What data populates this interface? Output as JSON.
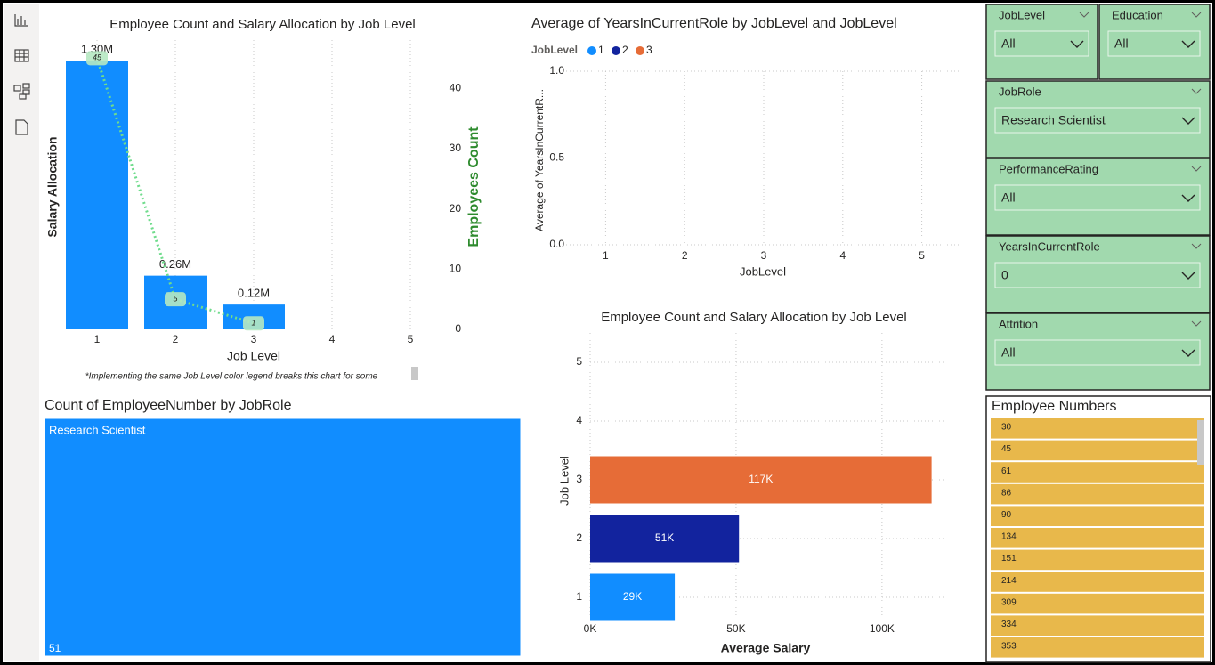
{
  "chart_data": [
    {
      "type": "bar-line",
      "title": "Employee Count and Salary Allocation by Job Level",
      "x": [
        1,
        2,
        3
      ],
      "xlim": [
        0.5,
        5.5
      ],
      "xticks": [
        1,
        2,
        3,
        4,
        5
      ],
      "xlabel": "Job Level",
      "ylabel": "Salary Allocation",
      "ylim": [
        0,
        1400000
      ],
      "y2label": "Employees Count",
      "y2lim": [
        0,
        48
      ],
      "y2ticks": [
        0,
        10,
        20,
        30,
        40
      ],
      "series": [
        {
          "type": "bar",
          "color": "#118dff",
          "values": [
            1300000,
            260000,
            120000
          ],
          "value_labels": [
            "1.30M",
            "0.26M",
            "0.12M"
          ]
        },
        {
          "type": "line",
          "color": "#6fdc8c",
          "axis": "y2",
          "values": [
            45,
            5,
            1
          ]
        }
      ],
      "note": "*Implementing the same Job Level color legend breaks this chart for some"
    },
    {
      "type": "scatter",
      "title": "Average of YearsInCurrentRole by JobLevel and JobLevel",
      "legend_title": "JobLevel",
      "series": [
        {
          "name": "1",
          "color": "#118dff",
          "values": []
        },
        {
          "name": "2",
          "color": "#12239e",
          "values": []
        },
        {
          "name": "3",
          "color": "#e66c37",
          "values": []
        }
      ],
      "xlabel": "JobLevel",
      "ylabel": "Average of YearsInCurrentR...",
      "xlim": [
        0.5,
        5.5
      ],
      "xticks": [
        1,
        2,
        3,
        4,
        5
      ],
      "ylim": [
        0,
        1
      ],
      "yticks": [
        {
          "value": 0,
          "label": "0.0"
        },
        {
          "value": 0.5,
          "label": "0.5"
        },
        {
          "value": 1,
          "label": "1.0"
        }
      ],
      "grid": true
    },
    {
      "type": "hbar",
      "title": "Employee Count and Salary Allocation by Job Level",
      "categories": [
        "1",
        "2",
        "3",
        "4",
        "5"
      ],
      "values": [
        29000,
        51000,
        117000,
        null,
        null
      ],
      "value_labels": [
        "29K",
        "51K",
        "117K",
        null,
        null
      ],
      "colors": [
        "#118dff",
        "#12239e",
        "#e66c37"
      ],
      "xlim": [
        0,
        122000
      ],
      "xticks": [
        {
          "value": 0,
          "label": "0K"
        },
        {
          "value": 50000,
          "label": "50K"
        },
        {
          "value": 100000,
          "label": "100K"
        }
      ],
      "xlabel": "Average Salary",
      "ylabel": "Job Level",
      "grid": true
    },
    {
      "type": "treemap",
      "title": "Count of EmployeeNumber by JobRole",
      "categories": [
        "Research Scientist"
      ],
      "values": [
        51
      ],
      "color": "#118dff"
    }
  ],
  "slicers": [
    {
      "title": "JobLevel",
      "value": "All"
    },
    {
      "title": "Education",
      "value": "All"
    },
    {
      "title": "JobRole",
      "value": "Research Scientist"
    },
    {
      "title": "PerformanceRating",
      "value": "All"
    },
    {
      "title": "YearsInCurrentRole",
      "value": "0"
    },
    {
      "title": "Attrition",
      "value": "All"
    }
  ],
  "table": {
    "title": "Employee Numbers",
    "rows": [
      30,
      45,
      61,
      86,
      90,
      134,
      151,
      214,
      309,
      334,
      353
    ],
    "color": "#e8b84b"
  }
}
